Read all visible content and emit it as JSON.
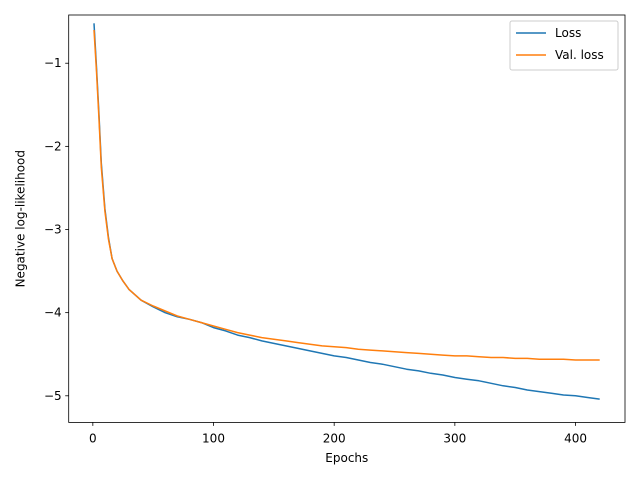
{
  "chart_data": {
    "type": "line",
    "title": "",
    "xlabel": "Epochs",
    "ylabel": "Negative log-likelihood",
    "xlim": [
      -20,
      441
    ],
    "ylim": [
      -5.32,
      -0.42
    ],
    "xticks": [
      0,
      100,
      200,
      300,
      400
    ],
    "yticks": [
      -1,
      -2,
      -3,
      -4,
      -5
    ],
    "xtick_labels": [
      "0",
      "100",
      "200",
      "300",
      "400"
    ],
    "ytick_labels": [
      "−1",
      "−2",
      "−3",
      "−4",
      "−5"
    ],
    "grid": false,
    "legend_position": "top-right",
    "series": [
      {
        "name": "Loss",
        "color": "#1f77b4",
        "x": [
          1,
          3,
          5,
          7,
          10,
          13,
          16,
          20,
          25,
          30,
          40,
          50,
          60,
          70,
          80,
          90,
          100,
          110,
          120,
          130,
          140,
          150,
          160,
          170,
          180,
          190,
          200,
          210,
          220,
          230,
          240,
          250,
          260,
          270,
          280,
          290,
          300,
          310,
          320,
          330,
          340,
          350,
          360,
          370,
          380,
          390,
          400,
          410,
          420
        ],
        "values": [
          -0.52,
          -1.05,
          -1.6,
          -2.2,
          -2.75,
          -3.1,
          -3.35,
          -3.5,
          -3.62,
          -3.72,
          -3.85,
          -3.93,
          -4.0,
          -4.05,
          -4.08,
          -4.12,
          -4.18,
          -4.22,
          -4.27,
          -4.3,
          -4.34,
          -4.37,
          -4.4,
          -4.43,
          -4.46,
          -4.49,
          -4.52,
          -4.54,
          -4.57,
          -4.6,
          -4.62,
          -4.65,
          -4.68,
          -4.7,
          -4.73,
          -4.75,
          -4.78,
          -4.8,
          -4.82,
          -4.85,
          -4.88,
          -4.9,
          -4.93,
          -4.95,
          -4.97,
          -4.99,
          -5.0,
          -5.02,
          -5.04
        ]
      },
      {
        "name": "Val. loss",
        "color": "#ff7f0e",
        "x": [
          1,
          3,
          5,
          7,
          10,
          13,
          16,
          20,
          25,
          30,
          40,
          50,
          60,
          70,
          80,
          90,
          100,
          110,
          120,
          130,
          140,
          150,
          160,
          170,
          180,
          190,
          200,
          210,
          220,
          230,
          240,
          250,
          260,
          270,
          280,
          290,
          300,
          310,
          320,
          330,
          340,
          350,
          360,
          370,
          380,
          390,
          400,
          410,
          420
        ],
        "values": [
          -0.6,
          -1.1,
          -1.65,
          -2.25,
          -2.78,
          -3.12,
          -3.35,
          -3.5,
          -3.62,
          -3.72,
          -3.85,
          -3.92,
          -3.98,
          -4.04,
          -4.08,
          -4.12,
          -4.16,
          -4.2,
          -4.24,
          -4.27,
          -4.3,
          -4.32,
          -4.34,
          -4.36,
          -4.38,
          -4.4,
          -4.41,
          -4.42,
          -4.44,
          -4.45,
          -4.46,
          -4.47,
          -4.48,
          -4.49,
          -4.5,
          -4.51,
          -4.52,
          -4.52,
          -4.53,
          -4.54,
          -4.54,
          -4.55,
          -4.55,
          -4.56,
          -4.56,
          -4.56,
          -4.57,
          -4.57,
          -4.57
        ]
      }
    ]
  }
}
